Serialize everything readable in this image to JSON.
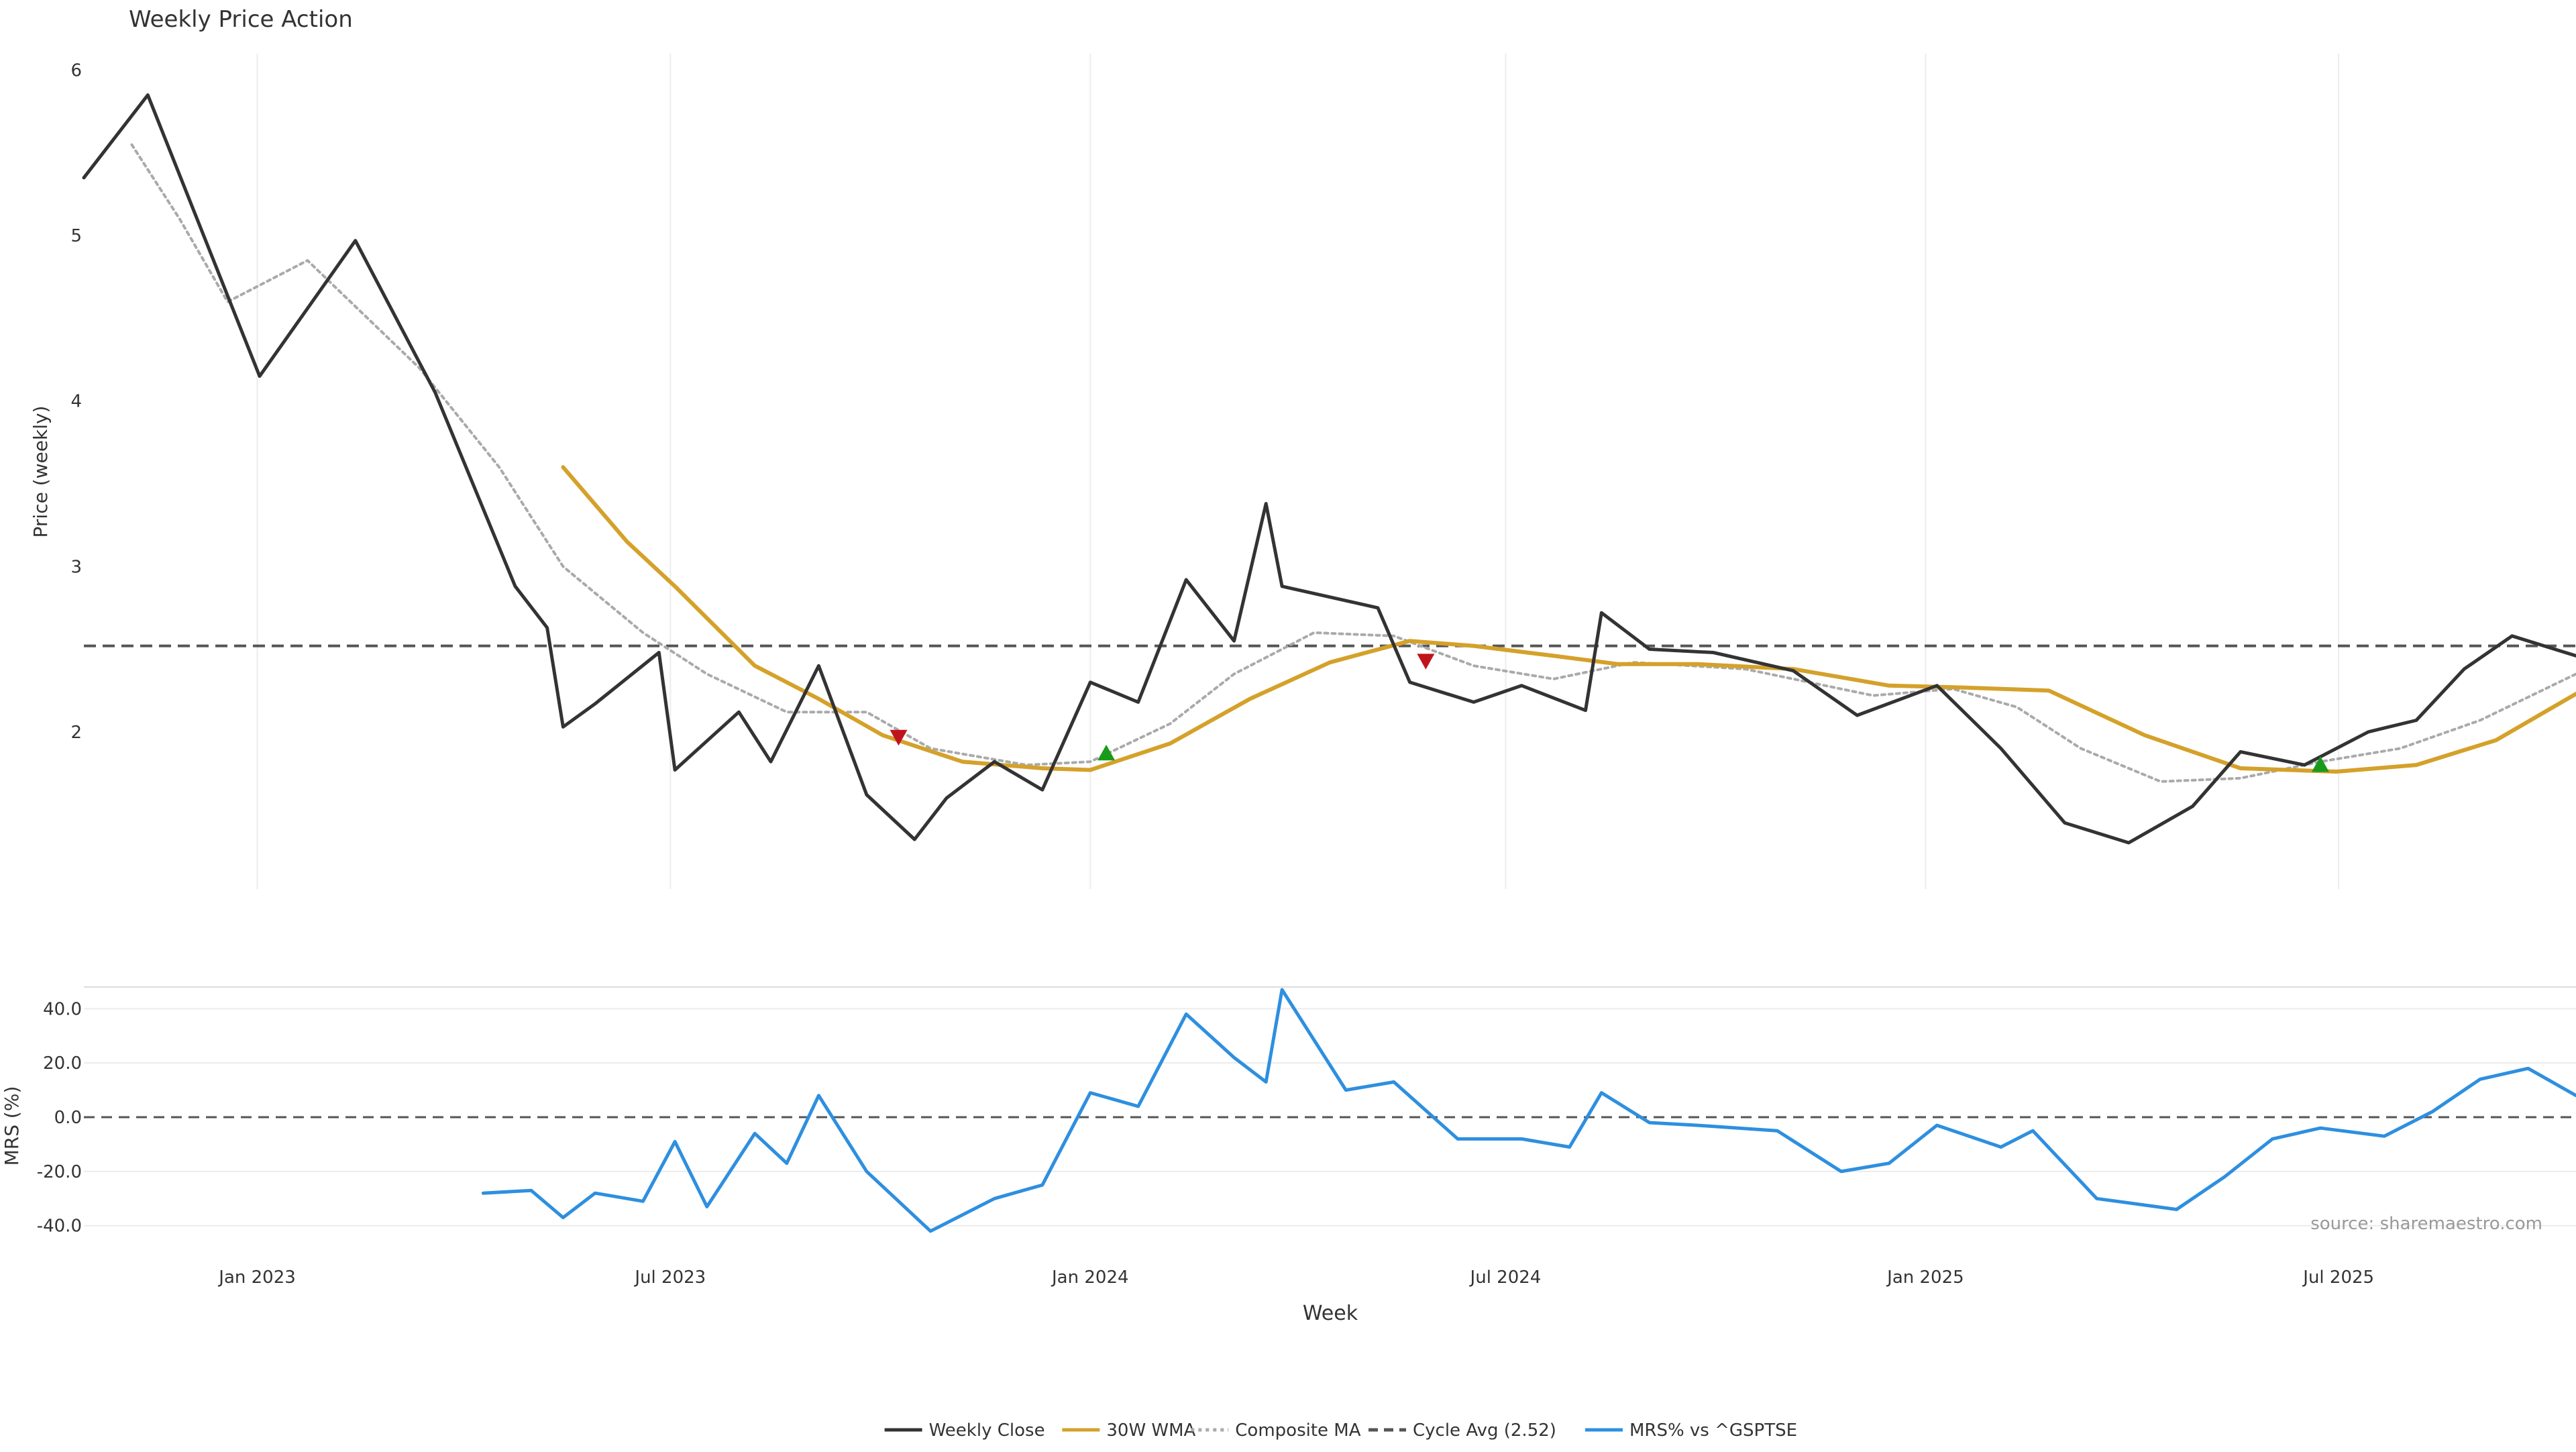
{
  "chart_data": {
    "type": "line",
    "title": "Weekly Price Action",
    "source_note": "source: sharemaestro.com",
    "xlabel": "Week",
    "x_tick_labels": [
      "Jan 2023",
      "Jul 2023",
      "Jan 2024",
      "Jul 2024",
      "Jan 2025",
      "Jul 2025"
    ],
    "x_tick_dates": [
      "2023-01-01",
      "2023-07-01",
      "2024-01-01",
      "2024-07-01",
      "2025-01-01",
      "2025-07-01"
    ],
    "x_range": [
      "2022-10-17",
      "2025-10-13"
    ],
    "price_panel": {
      "ylabel": "Price (weekly)",
      "ylim": [
        1.05,
        6.1
      ],
      "y_ticks": [
        2,
        3,
        4,
        5,
        6
      ],
      "y_tick_labels": [
        "2",
        "3",
        "4",
        "5",
        "6"
      ],
      "grid": "vertical",
      "cycle_avg": 2.52
    },
    "mrs_panel": {
      "ylabel": "MRS (%)",
      "ylim": [
        -47,
        48
      ],
      "y_ticks": [
        -40,
        -20,
        0,
        20,
        40
      ],
      "y_tick_labels": [
        "-40.0",
        "-20.0",
        "0.0",
        "20.0",
        "40.0"
      ],
      "grid": "horizontal"
    },
    "legend": {
      "placement": "bottom-center",
      "items": [
        {
          "label": "Weekly Close",
          "style": "solid",
          "color": "#333333"
        },
        {
          "label": "30W WMA",
          "style": "solid",
          "color": "#d4a12a"
        },
        {
          "label": "Composite MA",
          "style": "dotted",
          "color": "#aaaaaa"
        },
        {
          "label": "Cycle Avg (2.52)",
          "style": "dashed",
          "color": "#555555"
        },
        {
          "label": "MRS% vs ^GSPTSE",
          "style": "solid",
          "color": "#2e8fdf"
        }
      ]
    },
    "colors": {
      "close": "#333333",
      "wma": "#d4a12a",
      "composite": "#aaaaaa",
      "cycle": "#555555",
      "mrs": "#2e8fdf",
      "buy_marker": "#1a9a1a",
      "sell_marker": "#c0141c"
    },
    "series": [
      {
        "name": "Weekly Close",
        "x": [
          "2022-10-17",
          "2022-11-14",
          "2023-01-02",
          "2023-02-13",
          "2023-03-20",
          "2023-04-24",
          "2023-05-08",
          "2023-05-15",
          "2023-05-29",
          "2023-06-26",
          "2023-07-03",
          "2023-07-31",
          "2023-08-14",
          "2023-09-04",
          "2023-09-25",
          "2023-10-16",
          "2023-10-30",
          "2023-11-20",
          "2023-12-11",
          "2024-01-01",
          "2024-01-22",
          "2024-02-12",
          "2024-03-04",
          "2024-03-18",
          "2024-03-25",
          "2024-05-06",
          "2024-05-20",
          "2024-06-17",
          "2024-07-08",
          "2024-08-05",
          "2024-08-12",
          "2024-09-02",
          "2024-09-30",
          "2024-11-04",
          "2024-12-02",
          "2025-01-06",
          "2025-02-03",
          "2025-03-03",
          "2025-03-31",
          "2025-04-28",
          "2025-05-19",
          "2025-06-16",
          "2025-07-14",
          "2025-08-04",
          "2025-08-25",
          "2025-09-15",
          "2025-10-13"
        ],
        "y": [
          5.35,
          5.85,
          4.15,
          4.97,
          4.05,
          2.88,
          2.63,
          2.03,
          2.17,
          2.48,
          1.77,
          2.12,
          1.82,
          2.4,
          1.62,
          1.35,
          1.6,
          1.82,
          1.65,
          2.3,
          2.18,
          2.92,
          2.55,
          3.38,
          2.88,
          2.75,
          2.3,
          2.18,
          2.28,
          2.13,
          2.72,
          2.5,
          2.48,
          2.37,
          2.1,
          2.28,
          1.9,
          1.45,
          1.33,
          1.55,
          1.88,
          1.8,
          2.0,
          2.07,
          2.38,
          2.58,
          2.46
        ]
      },
      {
        "name": "30W WMA",
        "x": [
          "2023-05-15",
          "2023-06-12",
          "2023-07-03",
          "2023-08-07",
          "2023-09-04",
          "2023-10-02",
          "2023-11-06",
          "2023-12-11",
          "2024-01-01",
          "2024-02-05",
          "2024-03-11",
          "2024-04-15",
          "2024-05-20",
          "2024-06-17",
          "2024-07-22",
          "2024-08-19",
          "2024-09-23",
          "2024-11-04",
          "2024-12-16",
          "2025-01-13",
          "2025-02-24",
          "2025-04-07",
          "2025-05-19",
          "2025-06-30",
          "2025-08-04",
          "2025-09-08",
          "2025-10-13"
        ],
        "y": [
          3.6,
          3.15,
          2.88,
          2.4,
          2.2,
          1.98,
          1.82,
          1.78,
          1.77,
          1.93,
          2.2,
          2.42,
          2.55,
          2.52,
          2.46,
          2.41,
          2.41,
          2.38,
          2.28,
          2.27,
          2.25,
          1.98,
          1.78,
          1.76,
          1.8,
          1.95,
          2.23
        ]
      },
      {
        "name": "Composite MA",
        "x": [
          "2022-11-07",
          "2022-11-28",
          "2022-12-19",
          "2023-01-23",
          "2023-03-13",
          "2023-04-17",
          "2023-05-15",
          "2023-06-19",
          "2023-07-17",
          "2023-08-21",
          "2023-09-25",
          "2023-10-23",
          "2023-12-04",
          "2024-01-01",
          "2024-02-05",
          "2024-03-04",
          "2024-04-08",
          "2024-05-13",
          "2024-06-17",
          "2024-07-22",
          "2024-08-26",
          "2024-10-14",
          "2024-12-09",
          "2025-01-13",
          "2025-02-10",
          "2025-03-10",
          "2025-04-14",
          "2025-05-19",
          "2025-06-23",
          "2025-07-28",
          "2025-09-01",
          "2025-10-13"
        ],
        "y": [
          5.55,
          5.1,
          4.6,
          4.85,
          4.2,
          3.6,
          3.0,
          2.6,
          2.35,
          2.12,
          2.12,
          1.9,
          1.8,
          1.82,
          2.05,
          2.35,
          2.6,
          2.58,
          2.4,
          2.32,
          2.42,
          2.38,
          2.22,
          2.26,
          2.15,
          1.9,
          1.7,
          1.72,
          1.82,
          1.9,
          2.07,
          2.35
        ]
      }
    ],
    "markers": [
      {
        "type": "sell",
        "x": "2023-10-09",
        "y": 1.97
      },
      {
        "type": "buy",
        "x": "2024-01-08",
        "y": 1.87
      },
      {
        "type": "sell",
        "x": "2024-05-27",
        "y": 2.43
      },
      {
        "type": "buy",
        "x": "2025-06-23",
        "y": 1.8
      }
    ],
    "mrs_series": {
      "name": "MRS% vs ^GSPTSE",
      "x": [
        "2023-04-10",
        "2023-05-01",
        "2023-05-15",
        "2023-05-29",
        "2023-06-19",
        "2023-07-03",
        "2023-07-17",
        "2023-08-07",
        "2023-08-21",
        "2023-09-04",
        "2023-09-25",
        "2023-10-23",
        "2023-11-20",
        "2023-12-11",
        "2024-01-01",
        "2024-01-22",
        "2024-02-12",
        "2024-03-04",
        "2024-03-18",
        "2024-03-25",
        "2024-04-22",
        "2024-05-13",
        "2024-06-10",
        "2024-07-08",
        "2024-07-29",
        "2024-08-12",
        "2024-09-02",
        "2024-09-23",
        "2024-10-28",
        "2024-11-25",
        "2024-12-16",
        "2025-01-06",
        "2025-02-03",
        "2025-02-17",
        "2025-03-17",
        "2025-04-21",
        "2025-05-12",
        "2025-06-02",
        "2025-06-23",
        "2025-07-21",
        "2025-08-11",
        "2025-09-01",
        "2025-09-22",
        "2025-10-13"
      ],
      "y": [
        -28,
        -27,
        -37,
        -28,
        -31,
        -9,
        -33,
        -6,
        -17,
        8,
        -20,
        -42,
        -30,
        -25,
        9,
        4,
        38,
        22,
        13,
        47,
        10,
        13,
        -8,
        -8,
        -11,
        9,
        -2,
        -3,
        -5,
        -20,
        -17,
        -3,
        -11,
        -5,
        -30,
        -34,
        -22,
        -8,
        -4,
        -7,
        2,
        14,
        18,
        8
      ]
    }
  }
}
